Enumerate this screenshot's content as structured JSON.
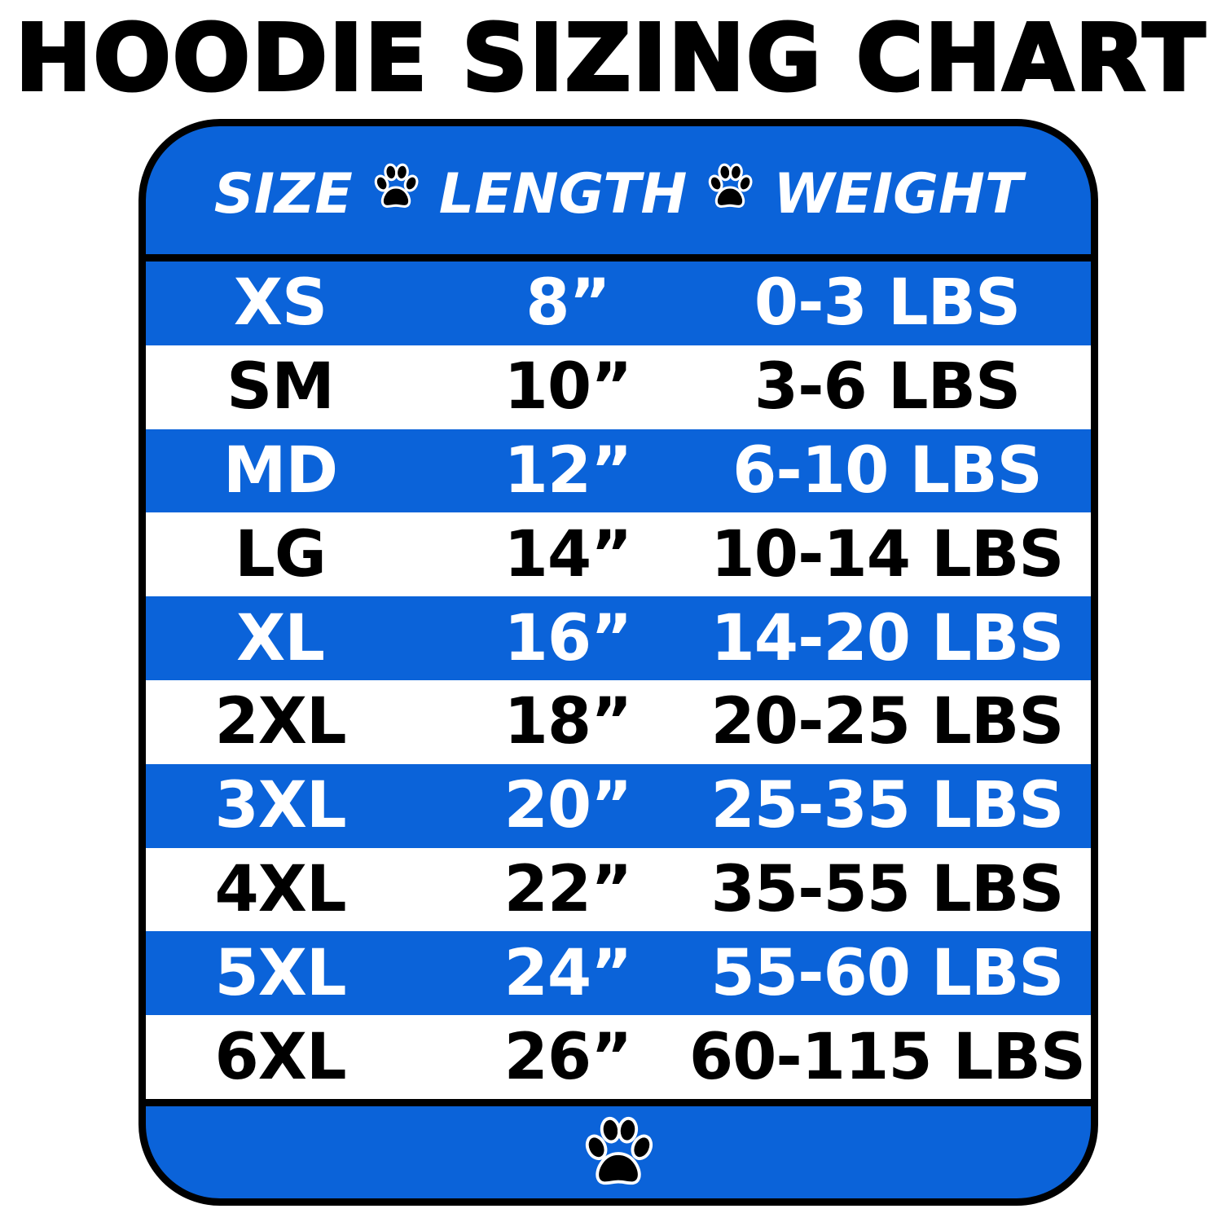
{
  "title": "HOODIE SIZING CHART",
  "colors": {
    "blue": "#0b63d9",
    "black": "#000000",
    "white": "#ffffff"
  },
  "header": {
    "size": "SIZE",
    "length": "LENGTH",
    "weight": "WEIGHT",
    "separator_icon": "paw-print-icon"
  },
  "rows": [
    {
      "size": "XS",
      "length": "8”",
      "weight": "0-3 LBS"
    },
    {
      "size": "SM",
      "length": "10”",
      "weight": "3-6 LBS"
    },
    {
      "size": "MD",
      "length": "12”",
      "weight": "6-10 LBS"
    },
    {
      "size": "LG",
      "length": "14”",
      "weight": "10-14 LBS"
    },
    {
      "size": "XL",
      "length": "16”",
      "weight": "14-20 LBS"
    },
    {
      "size": "2XL",
      "length": "18”",
      "weight": "20-25 LBS"
    },
    {
      "size": "3XL",
      "length": "20”",
      "weight": "25-35 LBS"
    },
    {
      "size": "4XL",
      "length": "22”",
      "weight": "35-55 LBS"
    },
    {
      "size": "5XL",
      "length": "24”",
      "weight": "55-60 LBS"
    },
    {
      "size": "6XL",
      "length": "26”",
      "weight": "60-115 LBS"
    }
  ],
  "footer": {
    "icon": "paw-print-icon"
  }
}
